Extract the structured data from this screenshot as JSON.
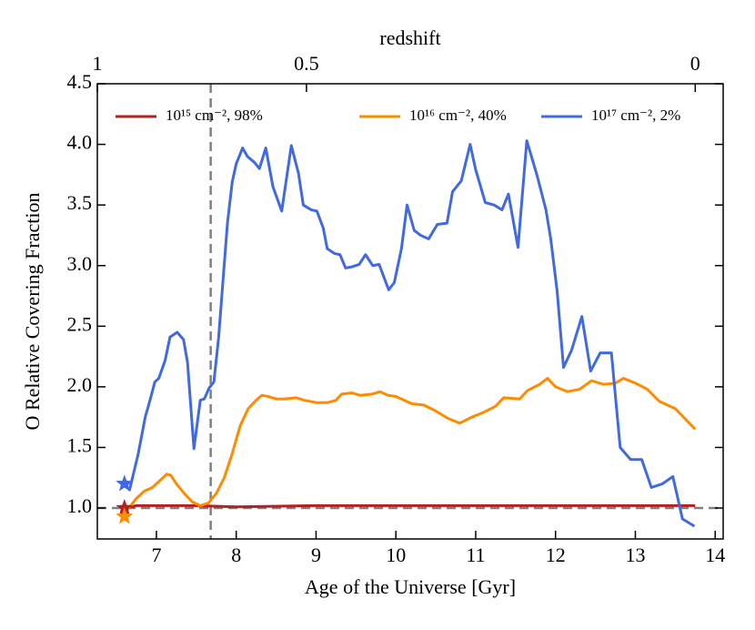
{
  "chart_data": {
    "type": "line",
    "xlabel": "Age of the Universe [Gyr]",
    "ylabel": "O Relative Covering Fraction",
    "x2label": "redshift",
    "xlim": [
      6.26,
      14.1
    ],
    "xticks": [
      7,
      8,
      9,
      10,
      11,
      12,
      13,
      14
    ],
    "x2ticks": [
      {
        "value": 6.26,
        "label": "1"
      },
      {
        "value": 8.88,
        "label": "0.5"
      },
      {
        "value": 13.75,
        "label": "0"
      }
    ],
    "ylim": [
      0.745,
      4.5
    ],
    "yticks": [
      {
        "value": 1.0,
        "label": "1.0"
      },
      1.5,
      {
        "value": 2.0,
        "label": "2.0"
      },
      2.5,
      {
        "value": 3.0,
        "label": "3.0"
      },
      3.5,
      {
        "value": 4.0,
        "label": "4.0"
      },
      4.5
    ],
    "hlines": [
      {
        "value": 1.0,
        "color": "#808080"
      }
    ],
    "vlines": [
      {
        "value": 7.68,
        "color": "#808080"
      }
    ],
    "legend": "upper center",
    "series": [
      {
        "name": "10¹⁵ cm⁻², 98%",
        "color": "#b22222",
        "x": [
          6.63,
          6.75,
          7.5,
          8.0,
          9.0,
          13.75
        ],
        "values": [
          1.0,
          1.02,
          1.02,
          1.01,
          1.02,
          1.02
        ]
      },
      {
        "name": "10¹⁶ cm⁻², 40%",
        "color": "#ff8c00",
        "x": [
          6.63,
          6.75,
          6.85,
          6.95,
          7.05,
          7.13,
          7.18,
          7.25,
          7.35,
          7.45,
          7.55,
          7.65,
          7.75,
          7.85,
          7.95,
          8.05,
          8.15,
          8.25,
          8.32,
          8.4,
          8.5,
          8.6,
          8.75,
          8.85,
          9.0,
          9.15,
          9.25,
          9.32,
          9.45,
          9.55,
          9.7,
          9.8,
          9.9,
          10.0,
          10.2,
          10.35,
          10.5,
          10.65,
          10.8,
          10.95,
          11.1,
          11.25,
          11.35,
          11.55,
          11.65,
          11.8,
          11.9,
          12.0,
          12.15,
          12.3,
          12.45,
          12.6,
          12.75,
          12.85,
          13.0,
          13.15,
          13.3,
          13.5,
          13.75
        ],
        "values": [
          0.98,
          1.08,
          1.14,
          1.17,
          1.23,
          1.28,
          1.27,
          1.2,
          1.12,
          1.05,
          1.02,
          1.04,
          1.12,
          1.25,
          1.45,
          1.68,
          1.82,
          1.89,
          1.93,
          1.92,
          1.9,
          1.9,
          1.91,
          1.89,
          1.87,
          1.87,
          1.89,
          1.94,
          1.95,
          1.93,
          1.94,
          1.96,
          1.93,
          1.92,
          1.86,
          1.85,
          1.8,
          1.74,
          1.7,
          1.75,
          1.79,
          1.84,
          1.91,
          1.9,
          1.97,
          2.02,
          2.07,
          2.0,
          1.96,
          1.98,
          2.05,
          2.02,
          2.03,
          2.07,
          2.03,
          1.98,
          1.88,
          1.82,
          1.65
        ]
      },
      {
        "name": "10¹⁷ cm⁻², 2%",
        "color": "#4169e1",
        "x": [
          6.66,
          6.77,
          6.86,
          6.92,
          6.98,
          7.03,
          7.11,
          7.17,
          7.26,
          7.34,
          7.39,
          7.47,
          7.55,
          7.6,
          7.66,
          7.72,
          7.78,
          7.83,
          7.89,
          7.95,
          8.0,
          8.08,
          8.14,
          8.23,
          8.29,
          8.37,
          8.46,
          8.57,
          8.69,
          8.78,
          8.84,
          8.94,
          9.01,
          9.09,
          9.14,
          9.23,
          9.3,
          9.37,
          9.45,
          9.54,
          9.62,
          9.71,
          9.79,
          9.91,
          9.98,
          10.07,
          10.14,
          10.23,
          10.31,
          10.41,
          10.52,
          10.64,
          10.71,
          10.82,
          10.93,
          11.0,
          11.12,
          11.23,
          11.33,
          11.41,
          11.53,
          11.64,
          11.77,
          11.88,
          11.94,
          12.02,
          12.1,
          12.2,
          12.33,
          12.44,
          12.56,
          12.7,
          12.81,
          12.94,
          13.08,
          13.2,
          13.34,
          13.47,
          13.59,
          13.74
        ],
        "values": [
          1.14,
          1.44,
          1.75,
          1.89,
          2.04,
          2.07,
          2.22,
          2.41,
          2.45,
          2.39,
          2.2,
          1.49,
          1.89,
          1.9,
          1.99,
          2.04,
          2.41,
          2.84,
          3.35,
          3.69,
          3.84,
          3.97,
          3.9,
          3.85,
          3.8,
          3.97,
          3.65,
          3.45,
          3.99,
          3.76,
          3.5,
          3.46,
          3.45,
          3.31,
          3.14,
          3.1,
          3.09,
          2.98,
          2.99,
          3.01,
          3.09,
          3.0,
          3.01,
          2.8,
          2.86,
          3.14,
          3.5,
          3.29,
          3.25,
          3.22,
          3.34,
          3.35,
          3.61,
          3.7,
          4.0,
          3.79,
          3.52,
          3.5,
          3.46,
          3.59,
          3.15,
          4.03,
          3.74,
          3.46,
          3.22,
          2.79,
          2.16,
          2.3,
          2.58,
          2.13,
          2.28,
          2.28,
          1.5,
          1.4,
          1.4,
          1.17,
          1.2,
          1.26,
          0.91,
          0.85
        ]
      }
    ],
    "stars": [
      {
        "x": 6.6,
        "y": 1.2,
        "color": "#4169e1"
      },
      {
        "x": 6.6,
        "y": 1.0,
        "color": "#b22222"
      },
      {
        "x": 6.6,
        "y": 0.93,
        "color": "#ff8c00"
      }
    ]
  }
}
